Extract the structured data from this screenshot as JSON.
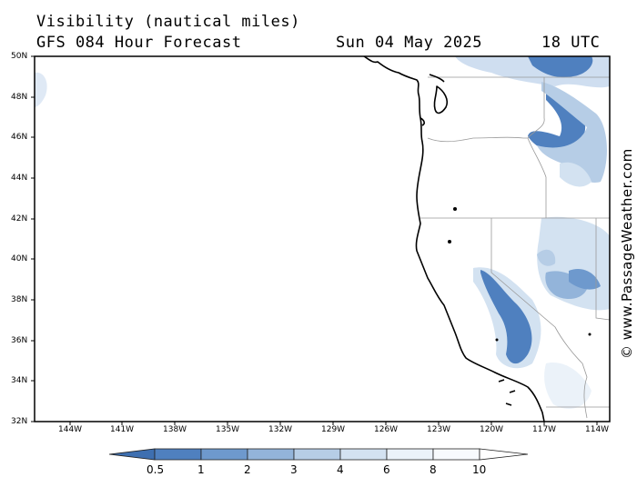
{
  "header": {
    "title": "Visibility (nautical miles)",
    "model": "GFS 084 Hour Forecast",
    "date": "Sun 04 May 2025",
    "time": "18 UTC"
  },
  "map": {
    "lat_labels": [
      "50N",
      "48N",
      "46N",
      "44N",
      "42N",
      "40N",
      "38N",
      "36N",
      "34N",
      "32N"
    ],
    "lon_labels": [
      "144W",
      "141W",
      "138W",
      "135W",
      "132W",
      "129W",
      "126W",
      "123W",
      "120W",
      "117W",
      "114W"
    ],
    "credit": "© www.PassageWeather.com",
    "region": "US West Coast, 32N-50N, 146W-113W"
  },
  "colorbar": {
    "labels": [
      "0.5",
      "1",
      "2",
      "3",
      "4",
      "6",
      "8",
      "10"
    ],
    "colors": [
      "#3e6fb0",
      "#4f80bf",
      "#6e99cd",
      "#93b4da",
      "#b6cde6",
      "#d3e2f1",
      "#ebf2f9",
      "#ffffff"
    ]
  }
}
